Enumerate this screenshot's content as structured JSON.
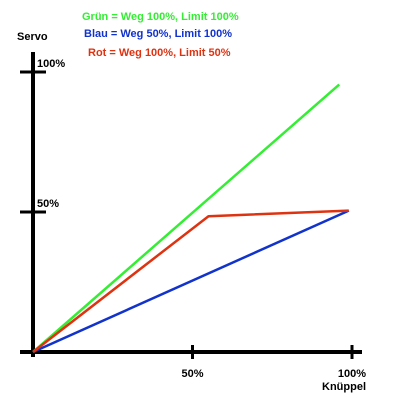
{
  "chart_data": {
    "type": "line",
    "ylabel": "Servo",
    "xlabel": "Knüppel",
    "xlim": [
      0,
      100
    ],
    "ylim": [
      0,
      100
    ],
    "grid": false,
    "legend_placement": "top-center",
    "x_ticks": [
      {
        "value": 50,
        "label": "50%"
      },
      {
        "value": 100,
        "label": "100%"
      }
    ],
    "y_ticks": [
      {
        "value": 50,
        "label": "50%"
      },
      {
        "value": 100,
        "label": "100%"
      }
    ],
    "series": [
      {
        "name": "Grün = Weg 100%, Limit 100%",
        "color": "#33ee33",
        "x": [
          0,
          96
        ],
        "y": [
          0,
          95.5
        ]
      },
      {
        "name": "Blau = Weg 50%, Limit 100%",
        "color": "#1133cc",
        "x": [
          0,
          99
        ],
        "y": [
          0,
          50.5
        ]
      },
      {
        "name": "Rot = Weg 100%, Limit 50%",
        "color": "#dd3311",
        "x": [
          0,
          55,
          99
        ],
        "y": [
          0,
          48.5,
          50.5
        ]
      }
    ]
  }
}
